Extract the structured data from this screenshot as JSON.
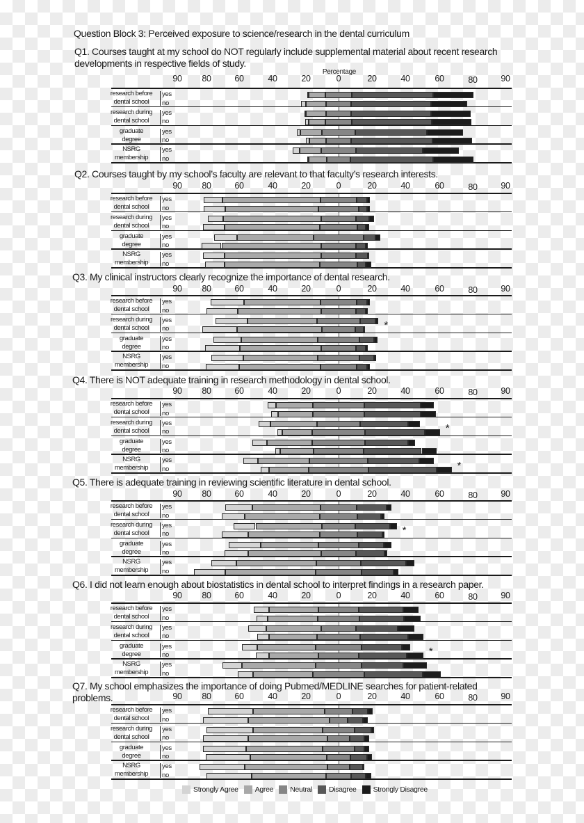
{
  "block_title": "Question Block 3: Perceived exposure to science/research in the dental curriculum",
  "chart_data": {
    "type": "bar",
    "orientation": "horizontal",
    "stacking": "diverging (neutral centered on 0)",
    "axis_label": "Percentage",
    "tick_labels": [
      "90",
      "80",
      "60",
      "40",
      "20",
      "0",
      "20",
      "40",
      "60",
      "80",
      "90"
    ],
    "segment_names": [
      "Strongly Agree",
      "Agree",
      "Neutral",
      "Disagree",
      "Strongly Disagree"
    ],
    "colors": [
      "#d4d4d4",
      "#a9a9a9",
      "#868686",
      "#585858",
      "#1c1c1c"
    ],
    "group_labels": [
      [
        "research before",
        "dental school"
      ],
      [
        "research during",
        "dental school"
      ],
      [
        "graduate",
        "degree"
      ],
      [
        "NSRG",
        "membership"
      ]
    ],
    "row_labels": [
      "yes",
      "no"
    ],
    "significance_marker": "*",
    "questions": [
      {
        "title": "Q1. Courses taught at my school do NOT regularly include supplemental material about recent research developments in respective fields of study.",
        "values": [
          [
            1,
            10,
            16,
            49,
            24
          ],
          [
            3,
            12,
            15,
            48,
            22
          ],
          [
            1,
            12,
            15,
            48,
            24
          ],
          [
            2,
            10,
            16,
            48,
            24
          ],
          [
            2,
            13,
            20,
            43,
            22
          ],
          [
            2,
            10,
            15,
            49,
            24
          ],
          [
            4,
            13,
            21,
            40,
            22
          ],
          [
            1,
            11,
            14,
            50,
            24
          ]
        ],
        "significant_groups": []
      },
      {
        "title": "Q2. Courses taught by my school’s faculty are relevant to that faculty’s research interests.",
        "values": [
          [
            11,
            59,
            22,
            6,
            2
          ],
          [
            13,
            56,
            24,
            5,
            2
          ],
          [
            9,
            59,
            21,
            8,
            3
          ],
          [
            13,
            57,
            23,
            5,
            2
          ],
          [
            14,
            46,
            30,
            7,
            3
          ],
          [
            12,
            60,
            21,
            6,
            1
          ],
          [
            13,
            58,
            21,
            7,
            1
          ],
          [
            12,
            57,
            23,
            5,
            3
          ]
        ],
        "significant_groups": []
      },
      {
        "title": "Q3. My clinical instructors clearly recognize the importance of dental research.",
        "values": [
          [
            20,
            46,
            22,
            6,
            2
          ],
          [
            19,
            50,
            21,
            6,
            1
          ],
          [
            19,
            42,
            26,
            9,
            2
          ],
          [
            21,
            51,
            20,
            5,
            1
          ],
          [
            17,
            46,
            25,
            9,
            2
          ],
          [
            21,
            49,
            21,
            6,
            1
          ],
          [
            19,
            45,
            25,
            9,
            1
          ],
          [
            20,
            49,
            22,
            6,
            2
          ]
        ],
        "significant_groups": [
          1
        ]
      },
      {
        "title": "Q4. There is NOT adequate training in research methodology in dental school.",
        "values": [
          [
            5,
            22,
            31,
            34,
            8
          ],
          [
            4,
            21,
            31,
            34,
            9
          ],
          [
            7,
            28,
            26,
            29,
            7
          ],
          [
            3,
            18,
            32,
            36,
            9
          ],
          [
            9,
            27,
            32,
            26,
            4
          ],
          [
            3,
            20,
            30,
            35,
            9
          ],
          [
            9,
            31,
            35,
            31,
            9
          ],
          [
            5,
            24,
            36,
            41,
            9
          ]
        ],
        "significant_groups": [
          1,
          3
        ]
      },
      {
        "title": "Q5. There is adequate training in reviewing scientific literature in dental school.",
        "values": [
          [
            16,
            41,
            22,
            18,
            3
          ],
          [
            14,
            45,
            23,
            14,
            2
          ],
          [
            13,
            40,
            20,
            21,
            4
          ],
          [
            16,
            43,
            23,
            15,
            1
          ],
          [
            19,
            35,
            24,
            15,
            5
          ],
          [
            14,
            44,
            21,
            17,
            2
          ],
          [
            15,
            48,
            27,
            27,
            5
          ],
          [
            19,
            54,
            28,
            19,
            3
          ]
        ],
        "significant_groups": [
          1
        ]
      },
      {
        "title": "Q6. I did not learn enough about biostatistics in dental school to interpret findings in a research paper.",
        "values": [
          [
            9,
            30,
            24,
            27,
            9
          ],
          [
            7,
            30,
            25,
            27,
            10
          ],
          [
            11,
            33,
            21,
            25,
            10
          ],
          [
            7,
            29,
            26,
            29,
            9
          ],
          [
            9,
            35,
            28,
            24,
            5
          ],
          [
            8,
            30,
            24,
            29,
            10
          ],
          [
            12,
            44,
            28,
            25,
            14
          ],
          [
            9,
            36,
            31,
            35,
            11
          ]
        ],
        "significant_groups": [
          2
        ]
      },
      {
        "title": "Q7. My school emphasizes the importance of doing Pubmed/MEDLINE searches for patient-related problems.",
        "values": [
          [
            27,
            43,
            17,
            9,
            3
          ],
          [
            27,
            49,
            11,
            9,
            3
          ],
          [
            28,
            42,
            19,
            10,
            2
          ],
          [
            27,
            48,
            13,
            9,
            3
          ],
          [
            26,
            46,
            19,
            6,
            3
          ],
          [
            27,
            46,
            14,
            10,
            3
          ],
          [
            27,
            50,
            13,
            8,
            1
          ],
          [
            27,
            45,
            15,
            9,
            3
          ]
        ],
        "significant_groups": []
      }
    ]
  }
}
